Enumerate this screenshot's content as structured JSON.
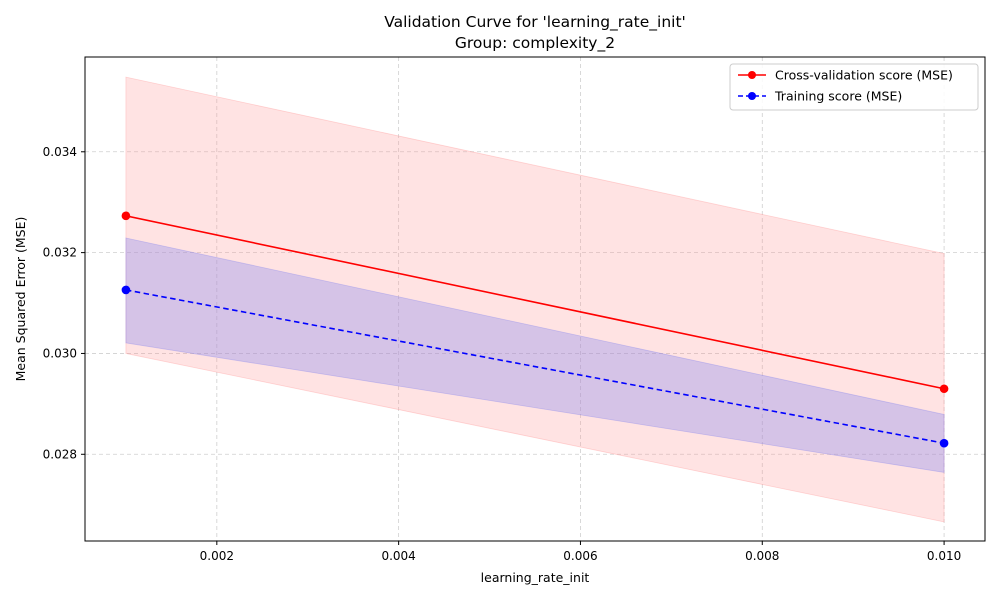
{
  "chart_data": {
    "type": "line",
    "title": "Validation Curve for 'learning_rate_init'",
    "subtitle": "Group: complexity_2",
    "xlabel": "learning_rate_init",
    "ylabel": "Mean Squared Error (MSE)",
    "xlim": [
      0.00055,
      0.01045
    ],
    "ylim": [
      0.02628,
      0.03588
    ],
    "x_ticks": [
      0.002,
      0.004,
      0.006,
      0.008,
      0.01
    ],
    "x_tick_labels": [
      "0.002",
      "0.004",
      "0.006",
      "0.008",
      "0.010"
    ],
    "y_ticks": [
      0.028,
      0.03,
      0.032,
      0.034
    ],
    "y_tick_labels": [
      "0.028",
      "0.030",
      "0.032",
      "0.034"
    ],
    "grid": true,
    "legend_position": "top-right",
    "x": [
      0.001,
      0.01
    ],
    "series": [
      {
        "name": "Cross-validation score (MSE)",
        "values": [
          0.03273,
          0.0293
        ],
        "band_lower": [
          0.03,
          0.02666
        ],
        "band_upper": [
          0.03548,
          0.03198
        ],
        "color": "#ff0000",
        "band_color": "#ff9999",
        "linestyle": "solid",
        "marker": "circle"
      },
      {
        "name": "Training score (MSE)",
        "values": [
          0.03126,
          0.02822
        ],
        "band_lower": [
          0.03021,
          0.02764
        ],
        "band_upper": [
          0.03229,
          0.02879
        ],
        "color": "#0000ff",
        "band_color": "#8888ee",
        "linestyle": "dashed",
        "marker": "circle"
      }
    ]
  }
}
